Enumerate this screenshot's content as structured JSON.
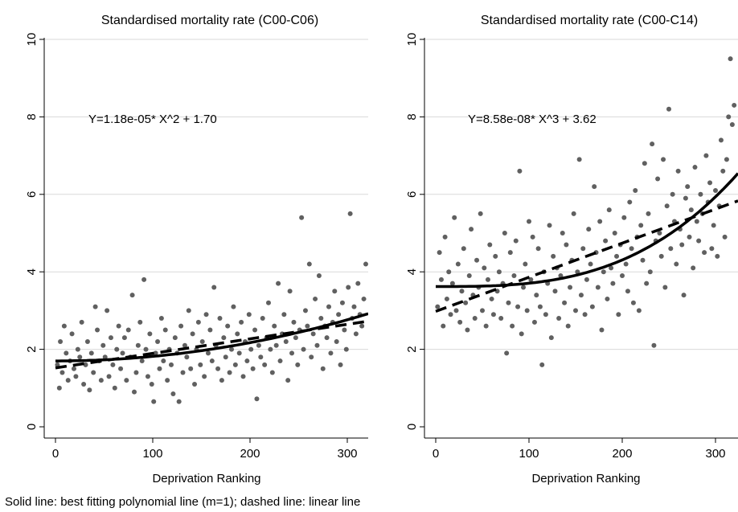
{
  "footnote": "Solid line: best fitting polynomial line (m=1); dashed line: linear line",
  "chart_data": [
    {
      "type": "scatter",
      "title": "Standardised mortality rate (C00-C06)",
      "xlabel": "Deprivation Ranking",
      "ylabel": "",
      "xlim": [
        0,
        325
      ],
      "ylim": [
        0,
        10
      ],
      "x_ticks": [
        "0",
        "100",
        "200",
        "300"
      ],
      "y_ticks": [
        "0",
        "2",
        "4",
        "6",
        "8",
        "10"
      ],
      "grid": "horizontal",
      "equation": "Y=1.18e-05* X^2 +  1.70",
      "fit_polynomial": {
        "a": 1.18e-05,
        "power": 2,
        "c": 1.7,
        "style": "solid"
      },
      "fit_linear": {
        "intercept": 1.52,
        "slope": 0.00375,
        "style": "dashed"
      },
      "points": [
        [
          2,
          1.6
        ],
        [
          4,
          1.0
        ],
        [
          5,
          2.2
        ],
        [
          7,
          1.4
        ],
        [
          9,
          2.6
        ],
        [
          11,
          1.9
        ],
        [
          13,
          1.2
        ],
        [
          15,
          1.7
        ],
        [
          17,
          2.4
        ],
        [
          19,
          1.5
        ],
        [
          21,
          1.3
        ],
        [
          23,
          2.0
        ],
        [
          25,
          1.8
        ],
        [
          27,
          2.7
        ],
        [
          29,
          1.1
        ],
        [
          31,
          1.6
        ],
        [
          33,
          2.2
        ],
        [
          35,
          0.95
        ],
        [
          37,
          1.9
        ],
        [
          39,
          1.4
        ],
        [
          41,
          3.1
        ],
        [
          43,
          2.5
        ],
        [
          45,
          1.7
        ],
        [
          47,
          1.2
        ],
        [
          49,
          2.1
        ],
        [
          51,
          1.8
        ],
        [
          53,
          3.0
        ],
        [
          55,
          1.3
        ],
        [
          57,
          2.3
        ],
        [
          59,
          1.6
        ],
        [
          61,
          1.0
        ],
        [
          63,
          2.0
        ],
        [
          65,
          2.6
        ],
        [
          67,
          1.5
        ],
        [
          69,
          1.9
        ],
        [
          71,
          2.3
        ],
        [
          73,
          1.2
        ],
        [
          75,
          2.5
        ],
        [
          77,
          1.8
        ],
        [
          79,
          3.4
        ],
        [
          81,
          0.9
        ],
        [
          83,
          1.4
        ],
        [
          85,
          2.1
        ],
        [
          87,
          2.7
        ],
        [
          89,
          1.7
        ],
        [
          91,
          3.8
        ],
        [
          93,
          2.0
        ],
        [
          95,
          1.3
        ],
        [
          97,
          2.4
        ],
        [
          99,
          1.1
        ],
        [
          101,
          0.65
        ],
        [
          103,
          1.9
        ],
        [
          105,
          2.2
        ],
        [
          107,
          1.5
        ],
        [
          109,
          2.8
        ],
        [
          111,
          1.7
        ],
        [
          113,
          2.5
        ],
        [
          115,
          1.2
        ],
        [
          117,
          2.0
        ],
        [
          119,
          1.6
        ],
        [
          121,
          0.85
        ],
        [
          123,
          2.3
        ],
        [
          125,
          1.9
        ],
        [
          127,
          0.65
        ],
        [
          129,
          2.6
        ],
        [
          131,
          1.4
        ],
        [
          133,
          2.1
        ],
        [
          135,
          1.8
        ],
        [
          137,
          3.0
        ],
        [
          139,
          1.5
        ],
        [
          141,
          2.4
        ],
        [
          143,
          1.1
        ],
        [
          145,
          2.0
        ],
        [
          147,
          2.7
        ],
        [
          149,
          1.6
        ],
        [
          151,
          2.2
        ],
        [
          153,
          1.3
        ],
        [
          155,
          2.9
        ],
        [
          157,
          1.9
        ],
        [
          159,
          2.5
        ],
        [
          161,
          1.7
        ],
        [
          163,
          3.6
        ],
        [
          165,
          2.1
        ],
        [
          167,
          1.5
        ],
        [
          169,
          2.8
        ],
        [
          171,
          1.2
        ],
        [
          173,
          2.3
        ],
        [
          175,
          1.8
        ],
        [
          177,
          2.6
        ],
        [
          179,
          1.4
        ],
        [
          181,
          2.0
        ],
        [
          183,
          3.1
        ],
        [
          185,
          1.6
        ],
        [
          187,
          2.4
        ],
        [
          189,
          1.9
        ],
        [
          191,
          2.7
        ],
        [
          193,
          1.3
        ],
        [
          195,
          2.2
        ],
        [
          197,
          1.7
        ],
        [
          199,
          2.9
        ],
        [
          201,
          2.0
        ],
        [
          203,
          1.5
        ],
        [
          205,
          2.5
        ],
        [
          207,
          0.72
        ],
        [
          209,
          2.1
        ],
        [
          211,
          1.8
        ],
        [
          213,
          2.8
        ],
        [
          215,
          1.6
        ],
        [
          217,
          2.3
        ],
        [
          219,
          3.2
        ],
        [
          221,
          2.0
        ],
        [
          223,
          1.4
        ],
        [
          225,
          2.6
        ],
        [
          227,
          2.1
        ],
        [
          229,
          3.7
        ],
        [
          231,
          1.7
        ],
        [
          233,
          2.4
        ],
        [
          235,
          2.9
        ],
        [
          237,
          2.2
        ],
        [
          239,
          1.2
        ],
        [
          241,
          3.5
        ],
        [
          243,
          1.9
        ],
        [
          245,
          2.7
        ],
        [
          247,
          2.3
        ],
        [
          249,
          1.6
        ],
        [
          251,
          2.5
        ],
        [
          253,
          5.4
        ],
        [
          255,
          2.0
        ],
        [
          257,
          3.0
        ],
        [
          259,
          2.6
        ],
        [
          261,
          4.2
        ],
        [
          263,
          1.8
        ],
        [
          265,
          2.4
        ],
        [
          267,
          3.3
        ],
        [
          269,
          2.1
        ],
        [
          271,
          3.9
        ],
        [
          273,
          2.8
        ],
        [
          275,
          1.5
        ],
        [
          277,
          2.6
        ],
        [
          279,
          2.3
        ],
        [
          281,
          3.1
        ],
        [
          283,
          1.9
        ],
        [
          285,
          2.7
        ],
        [
          287,
          3.5
        ],
        [
          289,
          2.2
        ],
        [
          291,
          2.9
        ],
        [
          293,
          1.6
        ],
        [
          295,
          3.2
        ],
        [
          297,
          2.5
        ],
        [
          299,
          2.0
        ],
        [
          301,
          3.6
        ],
        [
          303,
          5.5
        ],
        [
          305,
          2.8
        ],
        [
          307,
          3.1
        ],
        [
          309,
          2.4
        ],
        [
          311,
          3.7
        ],
        [
          313,
          2.9
        ],
        [
          315,
          2.6
        ],
        [
          317,
          3.3
        ],
        [
          319,
          4.2
        ]
      ]
    },
    {
      "type": "scatter",
      "title": "Standardised mortality rate (C00-C14)",
      "xlabel": "Deprivation Ranking",
      "ylabel": "",
      "xlim": [
        0,
        325
      ],
      "ylim": [
        0,
        10
      ],
      "x_ticks": [
        "0",
        "100",
        "200",
        "300"
      ],
      "y_ticks": [
        "0",
        "2",
        "4",
        "6",
        "8",
        "10"
      ],
      "grid": "horizontal",
      "equation": "Y=8.58e-08* X^3 +  3.62",
      "fit_polynomial": {
        "a": 8.58e-08,
        "power": 3,
        "c": 3.62,
        "style": "solid"
      },
      "fit_linear": {
        "intercept": 2.98,
        "slope": 0.0088,
        "style": "dashed"
      },
      "points": [
        [
          2,
          3.1
        ],
        [
          4,
          4.5
        ],
        [
          6,
          3.8
        ],
        [
          8,
          2.6
        ],
        [
          10,
          4.9
        ],
        [
          12,
          3.3
        ],
        [
          14,
          4.0
        ],
        [
          16,
          2.9
        ],
        [
          18,
          3.7
        ],
        [
          20,
          5.4
        ],
        [
          22,
          3.0
        ],
        [
          24,
          4.2
        ],
        [
          26,
          2.7
        ],
        [
          28,
          3.5
        ],
        [
          30,
          4.6
        ],
        [
          32,
          3.2
        ],
        [
          34,
          2.5
        ],
        [
          36,
          3.9
        ],
        [
          38,
          5.1
        ],
        [
          40,
          3.4
        ],
        [
          42,
          2.8
        ],
        [
          44,
          4.3
        ],
        [
          46,
          3.6
        ],
        [
          48,
          5.5
        ],
        [
          50,
          3.0
        ],
        [
          52,
          4.1
        ],
        [
          54,
          2.6
        ],
        [
          56,
          3.8
        ],
        [
          58,
          4.7
        ],
        [
          60,
          3.3
        ],
        [
          62,
          2.9
        ],
        [
          64,
          4.4
        ],
        [
          66,
          3.5
        ],
        [
          68,
          4.0
        ],
        [
          70,
          2.8
        ],
        [
          72,
          3.7
        ],
        [
          74,
          5.0
        ],
        [
          76,
          1.9
        ],
        [
          78,
          3.2
        ],
        [
          80,
          4.5
        ],
        [
          82,
          2.6
        ],
        [
          84,
          3.9
        ],
        [
          86,
          4.8
        ],
        [
          88,
          3.1
        ],
        [
          90,
          6.6
        ],
        [
          92,
          2.4
        ],
        [
          94,
          3.6
        ],
        [
          96,
          4.2
        ],
        [
          98,
          3.0
        ],
        [
          100,
          5.3
        ],
        [
          102,
          3.8
        ],
        [
          104,
          4.9
        ],
        [
          106,
          2.7
        ],
        [
          108,
          3.4
        ],
        [
          110,
          4.6
        ],
        [
          112,
          3.1
        ],
        [
          114,
          1.6
        ],
        [
          116,
          4.0
        ],
        [
          118,
          2.9
        ],
        [
          120,
          3.7
        ],
        [
          122,
          5.2
        ],
        [
          124,
          2.3
        ],
        [
          126,
          4.4
        ],
        [
          128,
          3.5
        ],
        [
          130,
          4.1
        ],
        [
          132,
          2.8
        ],
        [
          134,
          3.9
        ],
        [
          136,
          5.0
        ],
        [
          138,
          3.2
        ],
        [
          140,
          4.7
        ],
        [
          142,
          2.6
        ],
        [
          144,
          3.6
        ],
        [
          146,
          4.3
        ],
        [
          148,
          5.5
        ],
        [
          150,
          3.0
        ],
        [
          152,
          4.0
        ],
        [
          154,
          6.9
        ],
        [
          156,
          3.4
        ],
        [
          158,
          4.6
        ],
        [
          160,
          2.9
        ],
        [
          162,
          3.8
        ],
        [
          164,
          5.1
        ],
        [
          166,
          4.2
        ],
        [
          168,
          3.1
        ],
        [
          170,
          6.2
        ],
        [
          172,
          4.5
        ],
        [
          174,
          3.6
        ],
        [
          176,
          5.3
        ],
        [
          178,
          2.5
        ],
        [
          180,
          4.0
        ],
        [
          182,
          4.8
        ],
        [
          184,
          3.3
        ],
        [
          186,
          5.6
        ],
        [
          188,
          4.1
        ],
        [
          190,
          3.7
        ],
        [
          192,
          5.0
        ],
        [
          194,
          4.4
        ],
        [
          196,
          2.9
        ],
        [
          198,
          4.7
        ],
        [
          200,
          3.9
        ],
        [
          202,
          5.4
        ],
        [
          204,
          4.2
        ],
        [
          206,
          3.5
        ],
        [
          208,
          5.8
        ],
        [
          210,
          4.6
        ],
        [
          212,
          3.2
        ],
        [
          214,
          6.1
        ],
        [
          216,
          4.9
        ],
        [
          218,
          3.0
        ],
        [
          220,
          5.2
        ],
        [
          222,
          4.3
        ],
        [
          224,
          6.8
        ],
        [
          226,
          3.7
        ],
        [
          228,
          5.5
        ],
        [
          230,
          4.0
        ],
        [
          232,
          7.3
        ],
        [
          234,
          2.1
        ],
        [
          236,
          4.8
        ],
        [
          238,
          6.4
        ],
        [
          240,
          5.0
        ],
        [
          242,
          4.4
        ],
        [
          244,
          6.9
        ],
        [
          246,
          3.6
        ],
        [
          248,
          5.7
        ],
        [
          250,
          8.2
        ],
        [
          252,
          4.6
        ],
        [
          254,
          6.0
        ],
        [
          256,
          5.3
        ],
        [
          258,
          4.2
        ],
        [
          260,
          6.6
        ],
        [
          262,
          5.1
        ],
        [
          264,
          4.7
        ],
        [
          266,
          3.4
        ],
        [
          268,
          5.9
        ],
        [
          270,
          6.2
        ],
        [
          272,
          4.9
        ],
        [
          274,
          5.6
        ],
        [
          276,
          4.1
        ],
        [
          278,
          6.7
        ],
        [
          280,
          5.3
        ],
        [
          282,
          4.8
        ],
        [
          284,
          6.0
        ],
        [
          286,
          5.5
        ],
        [
          288,
          4.5
        ],
        [
          290,
          7.0
        ],
        [
          292,
          5.8
        ],
        [
          294,
          6.3
        ],
        [
          296,
          4.6
        ],
        [
          298,
          5.2
        ],
        [
          300,
          6.1
        ],
        [
          302,
          4.4
        ],
        [
          304,
          5.7
        ],
        [
          306,
          7.4
        ],
        [
          308,
          6.6
        ],
        [
          310,
          4.9
        ],
        [
          312,
          6.9
        ],
        [
          314,
          8.0
        ],
        [
          316,
          9.5
        ],
        [
          318,
          7.8
        ],
        [
          320,
          8.3
        ]
      ]
    }
  ]
}
